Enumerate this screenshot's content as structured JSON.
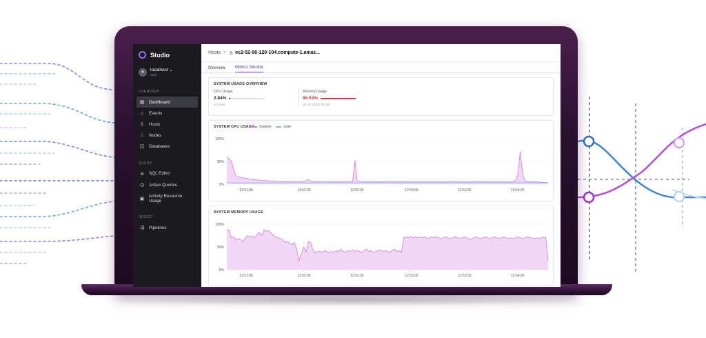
{
  "app": {
    "name": "Studio"
  },
  "account": {
    "host": "localhost",
    "user": "root"
  },
  "sidebar": {
    "sections": [
      {
        "label": "OVERVIEW",
        "items": [
          {
            "label": "Dashboard",
            "icon": "grid-icon",
            "active": true
          },
          {
            "label": "Events",
            "icon": "bell-icon"
          },
          {
            "label": "Hosts",
            "icon": "host-icon"
          },
          {
            "label": "Nodes",
            "icon": "nodes-icon"
          },
          {
            "label": "Databases",
            "icon": "database-icon"
          }
        ]
      },
      {
        "label": "QUERY",
        "items": [
          {
            "label": "SQL Editor",
            "icon": "sql-editor-icon"
          },
          {
            "label": "Active Queries",
            "icon": "clock-icon"
          },
          {
            "label": "Activity Resource Usage",
            "icon": "activity-icon"
          }
        ]
      },
      {
        "label": "INGEST",
        "items": [
          {
            "label": "Pipelines",
            "icon": "pipeline-icon"
          }
        ]
      }
    ]
  },
  "breadcrumb": {
    "root": "Hosts",
    "separator": ">",
    "host": "ec2-52-90-120-104.compute-1.amaz..."
  },
  "tabs": [
    {
      "label": "Overview",
      "active": false
    },
    {
      "label": "Metrics Monitor",
      "active": true
    }
  ],
  "overview": {
    "title": "SYSTEM USAGE OVERVIEW",
    "cpu": {
      "label": "CPU Usage",
      "value": "2.84%",
      "sub": "44 Core",
      "fraction": 0.0284,
      "color": "#222222"
    },
    "memory": {
      "label": "Memory Usage",
      "value": "98.53%",
      "sub": "31.53 Gb/32.00 Gb",
      "fraction": 0.9853,
      "color": "#e0343a"
    }
  },
  "colors": {
    "accent": "#7b5cf2",
    "system": "#d47ad9",
    "user": "#7fb8e8",
    "memory_fill": "#f2d6f6",
    "memory_line": "#d47ad9"
  },
  "chart_data": [
    {
      "type": "area",
      "title": "SYSTEM CPU USAGE",
      "legend": [
        "System",
        "User"
      ],
      "ylim": [
        0,
        100
      ],
      "y_ticks": [
        "100%",
        "50%",
        "0%"
      ],
      "x_ticks": [
        "12:51:00",
        "12:52:00",
        "12:52:30",
        "12:53:00",
        "12:53:30",
        "12:54:00"
      ],
      "series": [
        {
          "name": "System",
          "color": "#d47ad9",
          "values": [
            60,
            55,
            50,
            30,
            18,
            16,
            15,
            14,
            12,
            13,
            11,
            10,
            10,
            9,
            9,
            8,
            8,
            8,
            7,
            7,
            7,
            6,
            6,
            6,
            5,
            6,
            5,
            5,
            6,
            5,
            5,
            5,
            5,
            6,
            8,
            10,
            7,
            6,
            5,
            5,
            6,
            5,
            5,
            6,
            5,
            5,
            5,
            5,
            5,
            5,
            5,
            5,
            6,
            5,
            5,
            52,
            8,
            6,
            5,
            5,
            5,
            5,
            5,
            5,
            5,
            5,
            5,
            5,
            5,
            6,
            5,
            5,
            6,
            5,
            5,
            5,
            5,
            6,
            5,
            5,
            5,
            5,
            5,
            5,
            5,
            5,
            5,
            5,
            5,
            5,
            5,
            5,
            5,
            5,
            5,
            5,
            5,
            6,
            5,
            5,
            5,
            5,
            5,
            5,
            5,
            5,
            5,
            6,
            5,
            5,
            5,
            5,
            5,
            5,
            5,
            5,
            5,
            5,
            5,
            5,
            5,
            5,
            5,
            5,
            8,
            20,
            72,
            25,
            8,
            5,
            5,
            5,
            5,
            5,
            5,
            4,
            4,
            4,
            3
          ]
        },
        {
          "name": "User",
          "color": "#7fb8e8",
          "values": [
            3,
            3,
            3,
            3,
            3,
            3,
            3,
            3,
            3,
            3,
            3,
            3,
            3,
            3,
            3,
            3,
            3,
            3,
            3,
            3,
            3,
            3,
            3,
            3,
            3,
            3,
            3,
            3,
            3,
            3,
            3,
            3,
            3,
            3,
            3,
            3,
            3,
            3,
            3,
            3,
            3,
            3,
            3,
            3,
            3,
            3,
            3,
            3,
            3,
            3,
            3,
            3,
            3,
            3,
            3,
            3,
            3,
            3,
            3,
            3,
            3,
            3,
            3,
            3,
            3,
            3,
            3,
            3,
            3,
            3,
            3,
            3,
            3,
            3,
            3,
            3,
            3,
            3,
            3,
            3,
            3,
            3,
            3,
            3,
            3,
            3,
            3,
            3,
            3,
            3,
            3,
            3,
            3,
            3,
            3,
            3,
            3,
            3,
            3,
            3,
            3,
            3,
            3,
            3,
            3,
            3,
            3,
            3,
            3,
            3,
            3,
            3,
            3,
            3,
            3,
            3,
            3,
            3,
            3,
            3,
            3,
            3,
            3,
            3,
            3,
            3,
            3,
            3,
            3,
            3,
            3,
            3,
            3,
            3,
            3,
            3,
            3,
            3,
            3
          ]
        }
      ]
    },
    {
      "type": "area",
      "title": "SYSTEM MEMORY USAGE",
      "ylim": [
        0,
        100
      ],
      "y_ticks": [
        "100%",
        "50%",
        "0%"
      ],
      "x_ticks": [
        "12:51:00",
        "12:52:00",
        "12:52:30",
        "12:53:00",
        "12:53:30",
        "12:54:00"
      ],
      "series": [
        {
          "name": "Memory",
          "color": "#d47ad9",
          "values": [
            88,
            86,
            70,
            72,
            65,
            68,
            66,
            62,
            70,
            75,
            72,
            74,
            70,
            78,
            82,
            75,
            88,
            84,
            86,
            80,
            75,
            72,
            70,
            68,
            66,
            60,
            62,
            58,
            55,
            60,
            45,
            20,
            35,
            50,
            38,
            62,
            60,
            42,
            36,
            40,
            40,
            38,
            42,
            40,
            38,
            40,
            38,
            42,
            40,
            45,
            40,
            38,
            42,
            40,
            44,
            40,
            42,
            40,
            38,
            42,
            45,
            40,
            42,
            38,
            40,
            42,
            44,
            40,
            42,
            40,
            38,
            42,
            45,
            40,
            42,
            38,
            70,
            72,
            70,
            72,
            70,
            72,
            70,
            72,
            70,
            72,
            68,
            70,
            72,
            70,
            72,
            70,
            68,
            70,
            72,
            70,
            68,
            70,
            72,
            70,
            68,
            70,
            72,
            70,
            68,
            66,
            70,
            72,
            70,
            68,
            70,
            72,
            70,
            68,
            70,
            72,
            70,
            68,
            70,
            72,
            70,
            68,
            70,
            68,
            70,
            72,
            70,
            68,
            70,
            72,
            70,
            70,
            68,
            70,
            68,
            70,
            72,
            70,
            20
          ]
        }
      ]
    }
  ]
}
